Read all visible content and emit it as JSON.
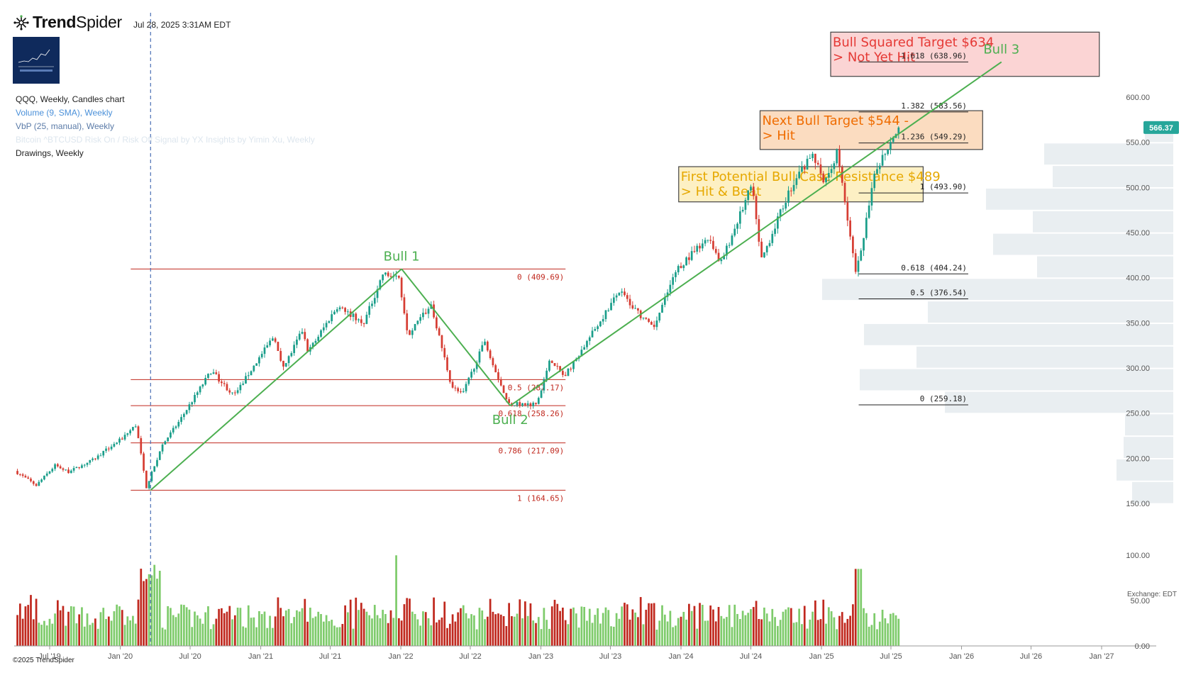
{
  "header": {
    "brand_bold": "Trend",
    "brand_light": "Spider",
    "datetime": "Jul 28, 2025 3:31AM EDT",
    "legend": {
      "title": "QQQ, Weekly, Candles chart",
      "volume": "Volume (9, SMA), Weekly",
      "vbp": "VbP (25, manual), Weekly",
      "bitcoin": "Bitcoin ^BTCUSD Risk On / Risk Off Signal by YX Insights by Yimin Xu, Weekly",
      "drawings": "Drawings, Weekly"
    }
  },
  "footer": {
    "copyright": "©2025 TrendSpider",
    "exchange": "Exchange: EDT"
  },
  "colors": {
    "up": "#7ecb6b",
    "down": "#c0281e",
    "trend": "#4caf50",
    "fib_left": "#c0281e",
    "fib_right": "#222222",
    "price_tag": "#26a69a"
  },
  "chart_data": {
    "type": "candlestick",
    "symbol": "QQQ",
    "timeframe": "Weekly",
    "x_ticks": [
      "Jul '19",
      "Jan '20",
      "Jul '20",
      "Jan '21",
      "Jul '21",
      "Jan '22",
      "Jul '22",
      "Jan '23",
      "Jul '23",
      "Jan '24",
      "Jul '24",
      "Jan '25",
      "Jul '25",
      "Jan '26",
      "Jul '26",
      "Jan '27"
    ],
    "x_tick_dates": [
      "2019-07-01",
      "2020-01-01",
      "2020-07-01",
      "2021-01-01",
      "2021-07-01",
      "2022-01-01",
      "2022-07-01",
      "2023-01-01",
      "2023-07-01",
      "2024-01-01",
      "2024-07-01",
      "2025-01-01",
      "2025-07-01",
      "2026-01-01",
      "2026-07-01",
      "2027-01-01"
    ],
    "y_ticks": [
      "600.00",
      "550.00",
      "500.00",
      "450.00",
      "400.00",
      "350.00",
      "300.00",
      "250.00",
      "200.00",
      "150.00"
    ],
    "y_tick_values": [
      600,
      550,
      500,
      450,
      400,
      350,
      300,
      250,
      200,
      150
    ],
    "volume_ticks": [
      "100.00",
      "50.00",
      "0.00"
    ],
    "volume_tick_values": [
      100,
      50,
      0
    ],
    "last_price": "566.37",
    "last_price_value": 566.37,
    "price_path": [
      [
        "2019-04-08",
        186
      ],
      [
        "2019-06-03",
        170
      ],
      [
        "2019-07-22",
        192
      ],
      [
        "2019-08-26",
        185
      ],
      [
        "2019-10-28",
        198
      ],
      [
        "2020-01-13",
        222
      ],
      [
        "2020-02-18",
        237
      ],
      [
        "2020-03-16",
        168
      ],
      [
        "2020-04-27",
        215
      ],
      [
        "2020-06-08",
        240
      ],
      [
        "2020-09-01",
        297
      ],
      [
        "2020-10-30",
        269
      ],
      [
        "2021-02-12",
        336
      ],
      [
        "2021-03-08",
        300
      ],
      [
        "2021-04-26",
        341
      ],
      [
        "2021-05-12",
        318
      ],
      [
        "2021-07-26",
        368
      ],
      [
        "2021-10-04",
        350
      ],
      [
        "2021-11-22",
        404
      ],
      [
        "2022-01-03",
        399
      ],
      [
        "2022-01-27",
        337
      ],
      [
        "2022-03-28",
        370
      ],
      [
        "2022-05-20",
        280
      ],
      [
        "2022-06-17",
        270
      ],
      [
        "2022-08-15",
        330
      ],
      [
        "2022-10-14",
        260
      ],
      [
        "2022-12-28",
        260
      ],
      [
        "2023-02-02",
        310
      ],
      [
        "2023-03-10",
        290
      ],
      [
        "2023-07-31",
        385
      ],
      [
        "2023-10-27",
        343
      ],
      [
        "2023-12-29",
        410
      ],
      [
        "2024-03-22",
        445
      ],
      [
        "2024-04-19",
        414
      ],
      [
        "2024-07-10",
        502
      ],
      [
        "2024-08-05",
        420
      ],
      [
        "2024-10-15",
        495
      ],
      [
        "2024-12-16",
        538
      ],
      [
        "2025-01-13",
        505
      ],
      [
        "2025-02-19",
        540
      ],
      [
        "2025-04-08",
        402
      ],
      [
        "2025-05-30",
        520
      ],
      [
        "2025-07-25",
        566.37
      ]
    ],
    "fib_left": {
      "x_start": "2020-03-20",
      "x_end": "2022-10-13",
      "levels": [
        {
          "label": "0 (409.69)",
          "value": 409.69
        },
        {
          "label": "0.5 (287.17)",
          "value": 287.17
        },
        {
          "label": "0.618 (258.26)",
          "value": 258.26
        },
        {
          "label": "0.786 (217.09)",
          "value": 217.09
        },
        {
          "label": "1 (164.65)",
          "value": 164.65
        }
      ]
    },
    "fib_right": {
      "x_start": "2025-04-08",
      "x_end": "2025-12-31",
      "levels": [
        {
          "label": "1.618 (638.96)",
          "value": 638.96
        },
        {
          "label": "1.382 (583.56)",
          "value": 583.56
        },
        {
          "label": "1.236 (549.29)",
          "value": 549.29
        },
        {
          "label": "1 (493.90)",
          "value": 493.9
        },
        {
          "label": "0.618 (404.24)",
          "value": 404.24
        },
        {
          "label": "0.5 (376.54)",
          "value": 376.54
        },
        {
          "label": "0 (259.18)",
          "value": 259.18
        }
      ]
    },
    "trend_lines": [
      {
        "from": [
          "2020-03-20",
          164.65
        ],
        "to": [
          "2022-01-03",
          409.69
        ]
      },
      {
        "from": [
          "2022-01-03",
          409.69
        ],
        "to": [
          "2022-10-13",
          258.26
        ]
      },
      {
        "from": [
          "2022-10-13",
          258.26
        ],
        "to": [
          "2026-04-15",
          638.96
        ]
      }
    ],
    "wave_labels": [
      {
        "text": "Bull 1",
        "date": "2022-01-03",
        "price": 409.69,
        "pos": "above"
      },
      {
        "text": "Bull 2",
        "date": "2022-10-13",
        "price": 258.26,
        "pos": "below"
      },
      {
        "text": "Bull 3",
        "date": "2026-04-15",
        "price": 638.96,
        "pos": "above"
      }
    ],
    "zones": [
      {
        "lines": [
          "Bull Squared Target $634",
          "> Not Yet Hit"
        ],
        "date_start": "2025-01-25",
        "date_end": "2026-12-26",
        "price_top": 672,
        "price_bottom": 623,
        "fill": "#fbd4d4",
        "text_color": "#e53935"
      },
      {
        "lines": [
          "Next Bull Target $544 -",
          "> Hit"
        ],
        "date_start": "2024-07-25",
        "date_end": "2026-02-25",
        "price_top": 585,
        "price_bottom": 542,
        "fill": "#fbdcc0",
        "text_color": "#ef6c00"
      },
      {
        "lines": [
          "First Potential Bull Case Resistance $489",
          "> Hit & Beat"
        ],
        "date_start": "2023-12-26",
        "date_end": "2025-09-23",
        "price_top": 523,
        "price_bottom": 484,
        "fill": "#fdf0c4",
        "text_color": "#e6a800"
      }
    ],
    "volume_by_price": [
      {
        "price": 162,
        "size": 58
      },
      {
        "price": 187,
        "size": 80
      },
      {
        "price": 212,
        "size": 70
      },
      {
        "price": 237,
        "size": 68
      },
      {
        "price": 262,
        "size": 322
      },
      {
        "price": 287,
        "size": 442
      },
      {
        "price": 312,
        "size": 362
      },
      {
        "price": 337,
        "size": 436
      },
      {
        "price": 362,
        "size": 346
      },
      {
        "price": 387,
        "size": 495
      },
      {
        "price": 412,
        "size": 192
      },
      {
        "price": 437,
        "size": 254
      },
      {
        "price": 462,
        "size": 198
      },
      {
        "price": 487,
        "size": 264
      },
      {
        "price": 512,
        "size": 170
      },
      {
        "price": 537,
        "size": 182
      },
      {
        "price": 562,
        "size": 40
      }
    ],
    "event_marker": {
      "date": "2020-03-20"
    }
  }
}
